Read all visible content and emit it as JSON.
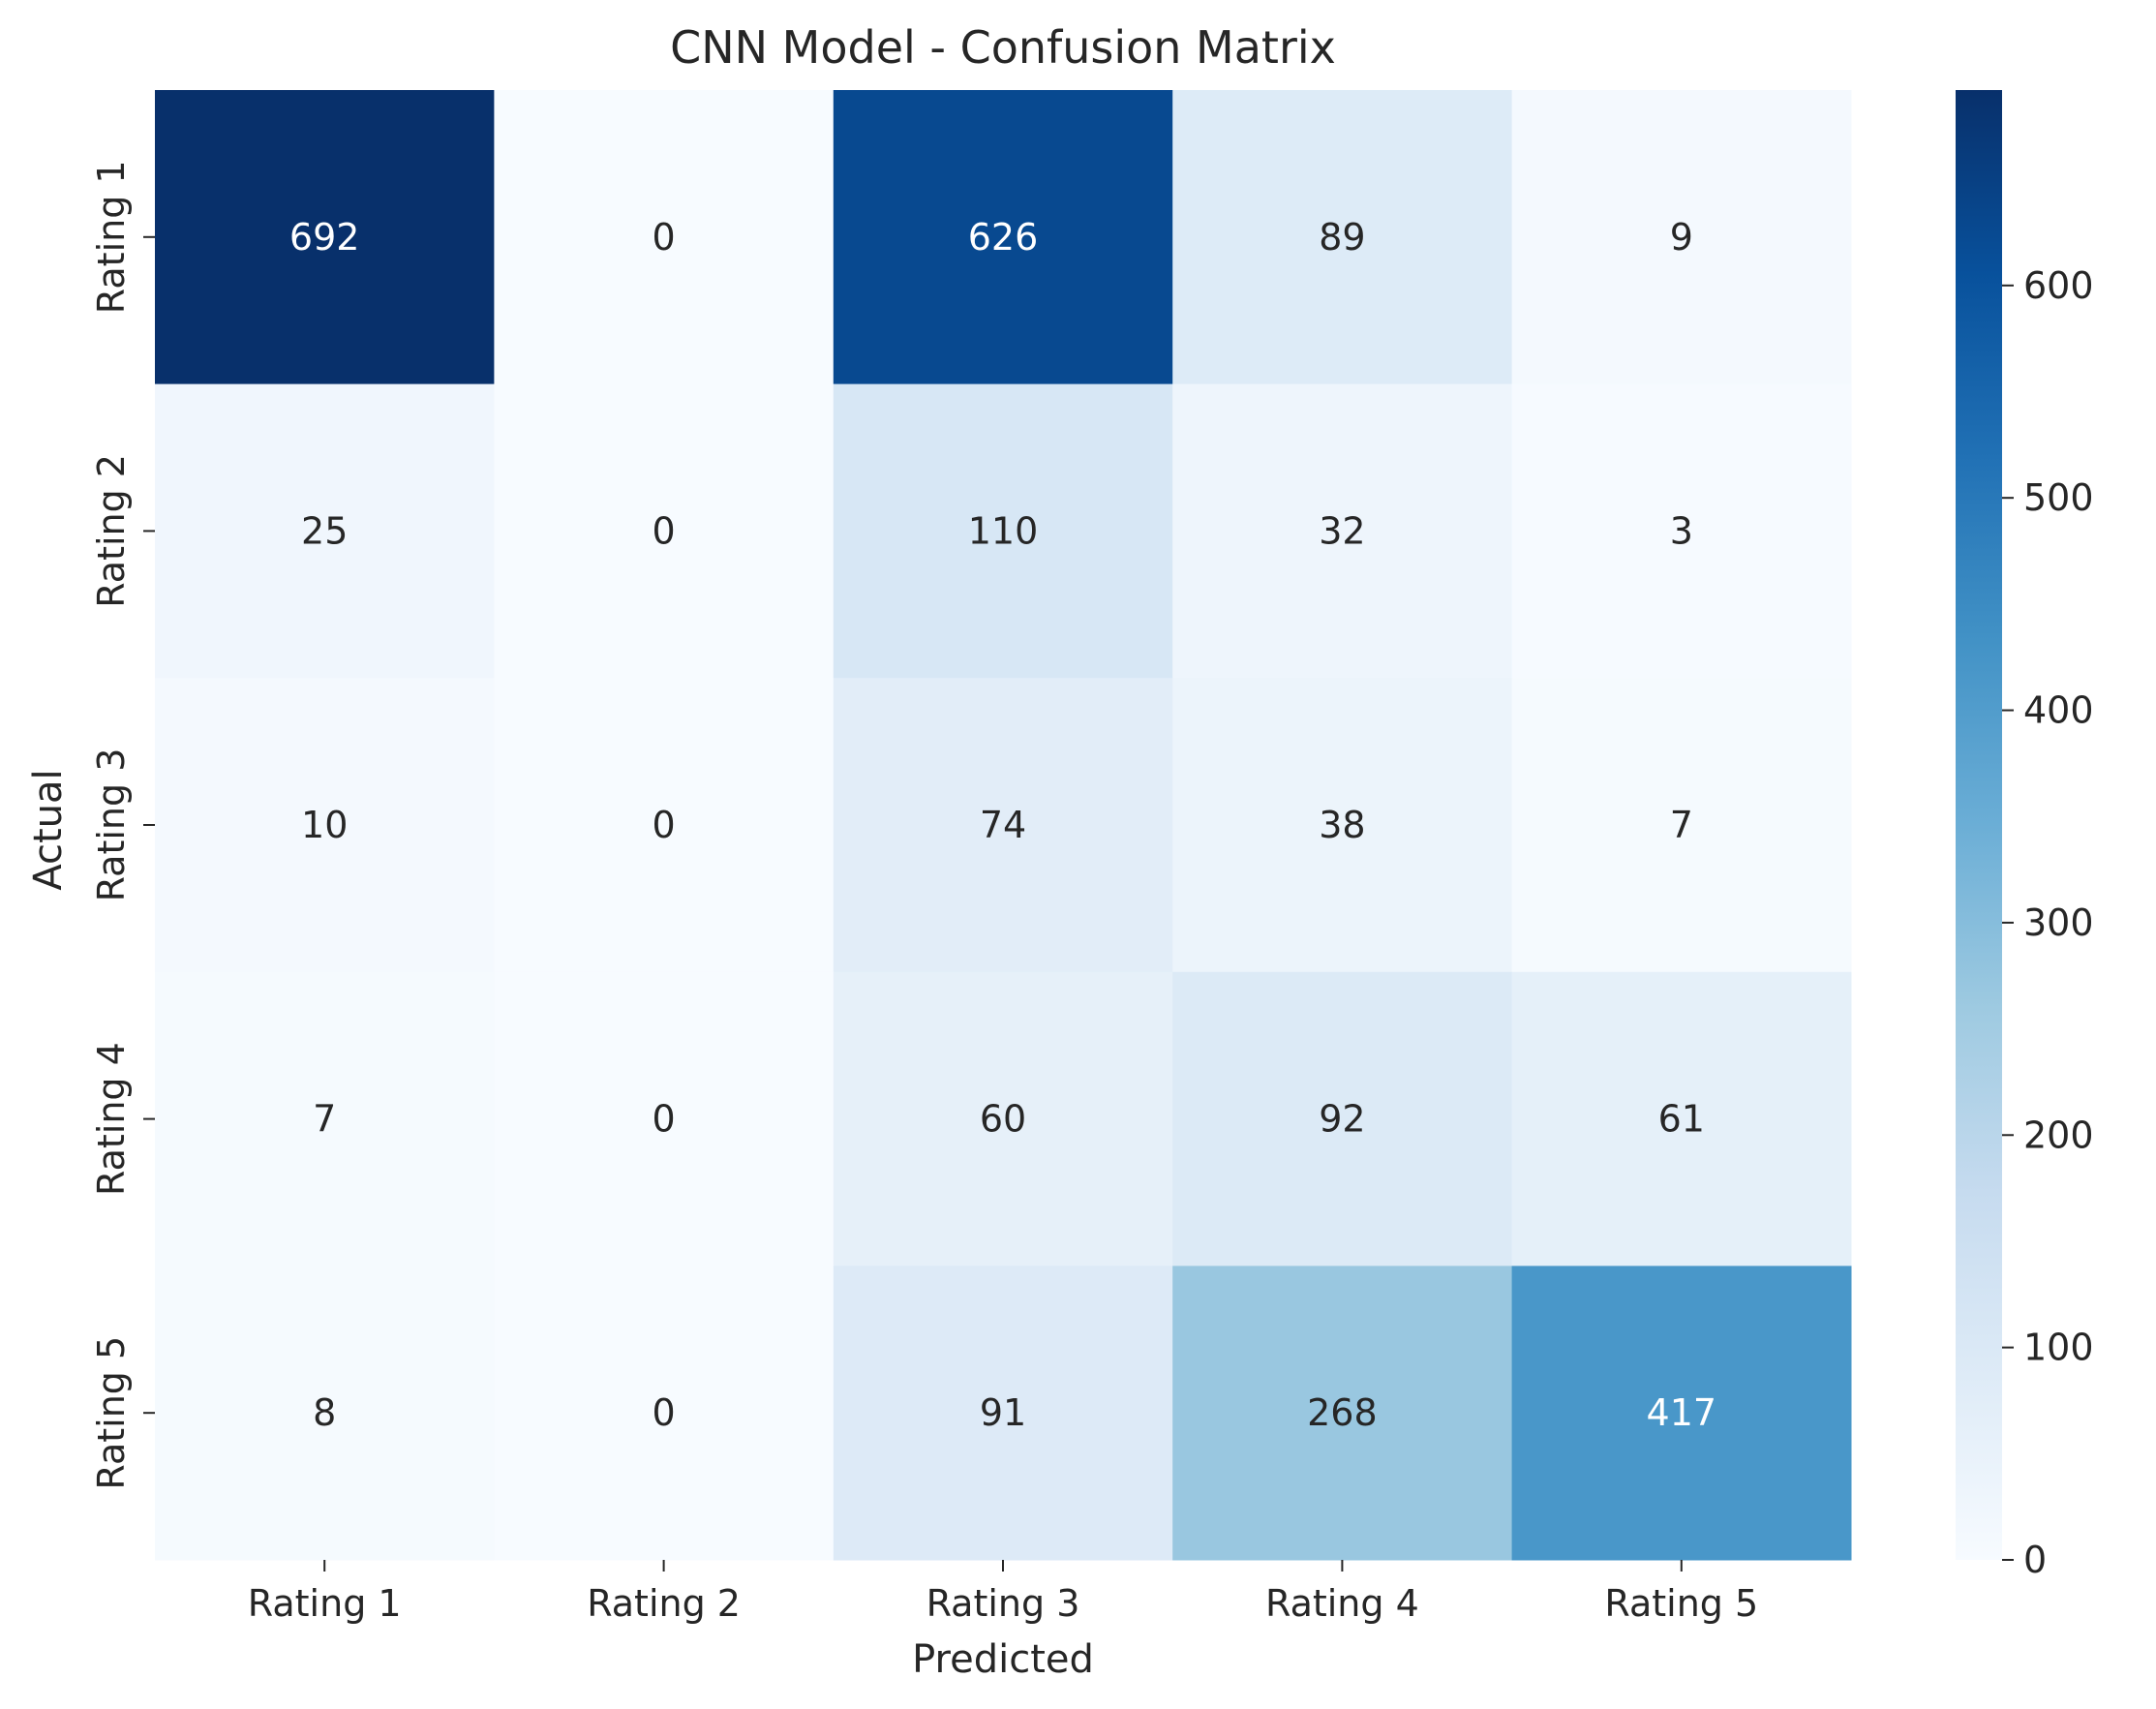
{
  "chart_data": {
    "type": "heatmap",
    "title": "CNN Model - Confusion Matrix",
    "xlabel": "Predicted",
    "ylabel": "Actual",
    "x_categories": [
      "Rating 1",
      "Rating 2",
      "Rating 3",
      "Rating 4",
      "Rating 5"
    ],
    "y_categories": [
      "Rating 1",
      "Rating 2",
      "Rating 3",
      "Rating 4",
      "Rating 5"
    ],
    "values": [
      [
        692,
        0,
        626,
        89,
        9
      ],
      [
        25,
        0,
        110,
        32,
        3
      ],
      [
        10,
        0,
        74,
        38,
        7
      ],
      [
        7,
        0,
        60,
        92,
        61
      ],
      [
        8,
        0,
        91,
        268,
        417
      ]
    ],
    "colormap": "Blues",
    "vmin": 0,
    "vmax": 692,
    "colorbar_ticks": [
      0,
      100,
      200,
      300,
      400,
      500,
      600
    ],
    "grid": false
  }
}
